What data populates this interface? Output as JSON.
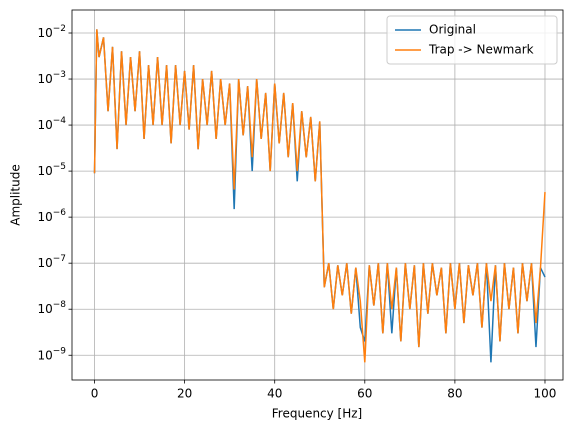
{
  "chart_data": {
    "type": "line",
    "xlabel": "Frequency [Hz]",
    "ylabel": "Amplitude",
    "log_y": true,
    "grid": true,
    "legend": "upper right",
    "xlim": [
      -5,
      104
    ],
    "ylim": [
      2.9e-10,
      0.0316
    ],
    "xticks": [
      0,
      20,
      40,
      60,
      80,
      100
    ],
    "yticks": [
      {
        "value": 1e-09,
        "label": "10−9"
      },
      {
        "value": 1e-08,
        "label": "10−8"
      },
      {
        "value": 1e-07,
        "label": "10−7"
      },
      {
        "value": 1e-06,
        "label": "10−6"
      },
      {
        "value": 1e-05,
        "label": "10−5"
      },
      {
        "value": 0.0001,
        "label": "10−4"
      },
      {
        "value": 0.001,
        "label": "10−3"
      },
      {
        "value": 0.01,
        "label": "10−2"
      }
    ],
    "x": [
      0,
      0.5,
      1,
      2,
      3,
      4,
      5,
      6,
      7,
      8,
      9,
      10,
      11,
      12,
      13,
      14,
      15,
      16,
      17,
      18,
      19,
      20,
      21,
      22,
      23,
      24,
      25,
      26,
      27,
      28,
      29,
      30,
      31,
      32,
      33,
      34,
      35,
      36,
      37,
      38,
      39,
      40,
      41,
      42,
      43,
      44,
      45,
      46,
      47,
      48,
      49,
      50,
      51,
      52,
      53,
      54,
      55,
      56,
      57,
      58,
      59,
      60,
      61,
      62,
      63,
      64,
      65,
      66,
      67,
      68,
      69,
      70,
      71,
      72,
      73,
      74,
      75,
      76,
      77,
      78,
      79,
      80,
      81,
      82,
      83,
      84,
      85,
      86,
      87,
      88,
      89,
      90,
      91,
      92,
      93,
      94,
      95,
      96,
      97,
      98,
      99,
      100
    ],
    "series": [
      {
        "name": "Original",
        "color": "#1f77b4",
        "values": [
          9e-06,
          0.012,
          0.003,
          0.008,
          0.0002,
          0.005,
          3e-05,
          0.004,
          0.0001,
          0.003,
          0.0002,
          0.004,
          5e-05,
          0.002,
          0.0001,
          0.003,
          0.0001,
          0.002,
          4e-05,
          0.002,
          0.0001,
          0.0015,
          8e-05,
          0.002,
          3e-05,
          0.001,
          0.0001,
          0.0015,
          5e-05,
          0.001,
          0.0001,
          0.0008,
          1.5e-06,
          0.001,
          6e-05,
          0.0007,
          1e-05,
          0.001,
          5e-05,
          0.0005,
          1e-05,
          0.0008,
          4e-05,
          0.0005,
          2e-05,
          0.0003,
          6e-06,
          0.0002,
          2e-05,
          0.00015,
          6e-06,
          0.00012,
          3e-08,
          1e-07,
          1e-08,
          9e-08,
          2e-08,
          1e-07,
          8e-09,
          8e-08,
          4e-09,
          2e-09,
          9e-08,
          1.2e-08,
          1e-07,
          3e-09,
          1e-07,
          3e-09,
          8e-08,
          2e-09,
          1e-07,
          1e-08,
          9e-08,
          1.5e-09,
          1e-07,
          8e-09,
          1e-07,
          2e-08,
          8e-08,
          3e-09,
          1e-07,
          1e-08,
          1e-07,
          5e-09,
          9e-08,
          2e-08,
          1e-07,
          4e-09,
          1e-07,
          7e-10,
          9e-08,
          2e-09,
          1e-07,
          1e-08,
          8e-08,
          3e-09,
          1e-07,
          1.5e-08,
          1e-07,
          1.5e-09,
          8e-08,
          5e-08
        ]
      },
      {
        "name": "Trap -> Newmark",
        "color": "#ff7f0e",
        "values": [
          9e-06,
          0.012,
          0.003,
          0.008,
          0.0002,
          0.005,
          3e-05,
          0.004,
          0.0001,
          0.003,
          0.0002,
          0.004,
          5e-05,
          0.002,
          0.0001,
          0.003,
          0.0001,
          0.002,
          4e-05,
          0.002,
          0.0001,
          0.0015,
          8e-05,
          0.002,
          3e-05,
          0.001,
          0.0001,
          0.0015,
          5e-05,
          0.001,
          0.0001,
          0.0008,
          4e-06,
          0.001,
          6e-05,
          0.0007,
          2e-05,
          0.001,
          5e-05,
          0.0005,
          1e-05,
          0.0008,
          4e-05,
          0.0005,
          2e-05,
          0.0003,
          1e-05,
          0.0002,
          2e-05,
          0.00015,
          6e-06,
          0.00012,
          3e-08,
          1e-07,
          1e-08,
          9e-08,
          2e-08,
          1e-07,
          8e-09,
          8e-08,
          1.5e-08,
          7e-10,
          9e-08,
          1.2e-08,
          1e-07,
          3e-09,
          1e-07,
          1e-08,
          8e-08,
          2e-09,
          1e-07,
          1e-08,
          9e-08,
          1.5e-09,
          1e-07,
          8e-09,
          1e-07,
          2e-08,
          8e-08,
          3e-09,
          1e-07,
          1e-08,
          1e-07,
          5e-09,
          9e-08,
          2e-08,
          1e-07,
          4e-09,
          1e-07,
          1.5e-08,
          9e-08,
          2e-09,
          1e-07,
          1e-08,
          8e-08,
          3e-09,
          1e-07,
          1.5e-08,
          1e-07,
          5e-09,
          8e-08,
          3.5e-06
        ]
      }
    ]
  }
}
